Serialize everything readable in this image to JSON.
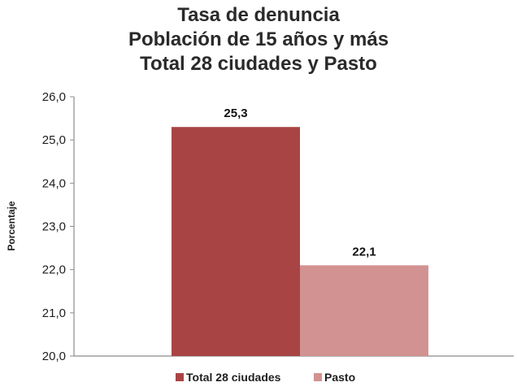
{
  "chart_data": {
    "type": "bar",
    "title_lines": [
      "Tasa de denuncia",
      "Población de 15 años y más",
      "Total 28 ciudades y Pasto"
    ],
    "ylabel": "Porcentaje",
    "xlabel": "",
    "ylim": [
      20.0,
      26.0
    ],
    "yticks": [
      "20,0",
      "21,0",
      "22,0",
      "23,0",
      "24,0",
      "25,0",
      "26,0"
    ],
    "grid": false,
    "legend_position": "bottom",
    "series": [
      {
        "name": "Total 28 ciudades",
        "value": 25.3,
        "label": "25,3",
        "color": "#a84444"
      },
      {
        "name": "Pasto",
        "value": 22.1,
        "label": "22,1",
        "color": "#d39292"
      }
    ]
  }
}
